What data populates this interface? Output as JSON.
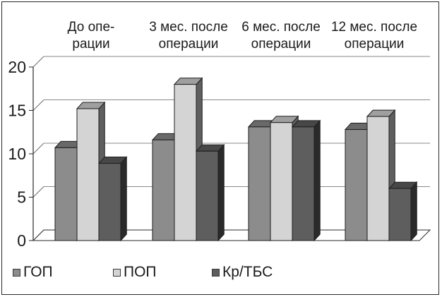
{
  "chart_data": {
    "type": "bar",
    "title": "",
    "xlabel": "",
    "ylabel": "",
    "categories": [
      [
        "До опе-",
        "рации"
      ],
      [
        "3 мес. после",
        "операции"
      ],
      [
        "6 мес. после",
        "операции"
      ],
      [
        "12 мес. после",
        "операции"
      ]
    ],
    "series": [
      {
        "name": "ГОП",
        "values": [
          10.7,
          11.6,
          13.1,
          12.8
        ],
        "color": "#8c8c8c"
      },
      {
        "name": "ПОП",
        "values": [
          15.2,
          18.0,
          13.6,
          14.3
        ],
        "color": "#d4d4d4"
      },
      {
        "name": "Кр/ТБС",
        "values": [
          8.9,
          10.3,
          13.1,
          6.0
        ],
        "color": "#5e5e5e"
      }
    ],
    "yticks": [
      "0",
      "5",
      "10",
      "15",
      "20"
    ],
    "ylim": [
      0,
      20
    ],
    "grid": true,
    "style": "3d-bars",
    "legend_position": "bottom-left"
  }
}
